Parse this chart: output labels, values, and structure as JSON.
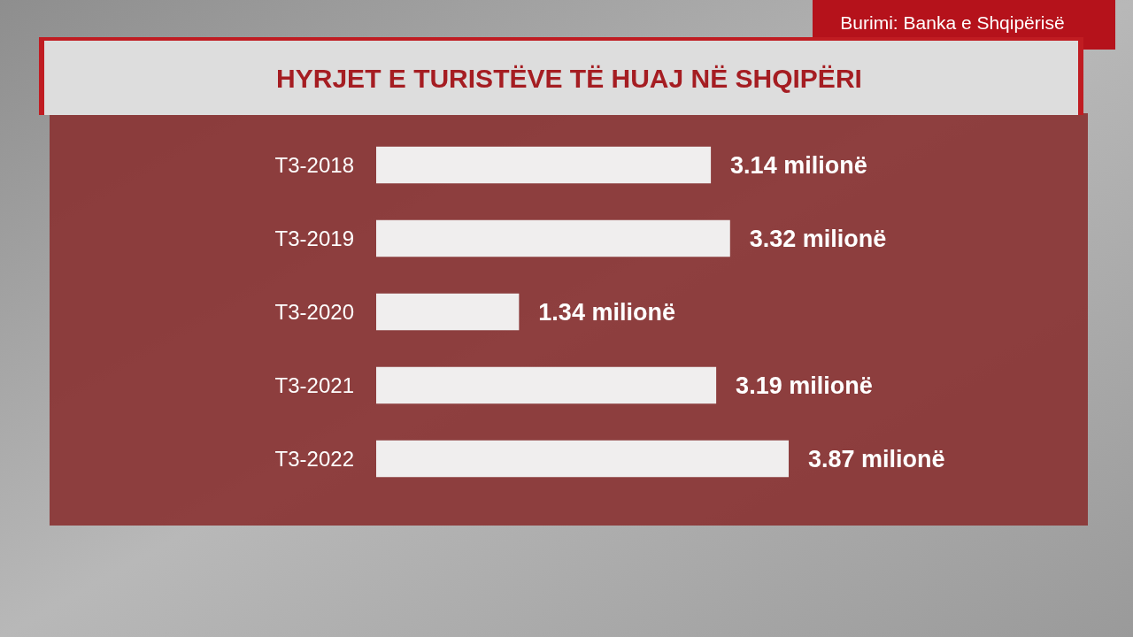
{
  "chart_data": {
    "type": "bar",
    "orientation": "horizontal",
    "title": "HYRJET E TURISTËVE TË HUAJ NË SHQIPËRI",
    "categories": [
      "T3-2018",
      "T3-2019",
      "T3-2020",
      "T3-2021",
      "T3-2022"
    ],
    "values": [
      3.14,
      3.32,
      1.34,
      3.19,
      3.87
    ],
    "value_labels": [
      "3.14 milionë",
      "3.32 milionë",
      "1.34 milionë",
      "3.19 milionë",
      "3.87 milionë"
    ],
    "color": "#f0eeee",
    "annotations": [
      "Burimi: Banka e Shqipërisë"
    ]
  }
}
